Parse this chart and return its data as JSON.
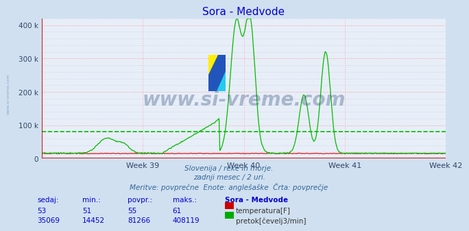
{
  "title": "Sora - Medvode",
  "title_color": "#0000cc",
  "bg_color": "#d0e0f0",
  "plot_bg_color": "#e8eef8",
  "grid_color_major": "#ffb0b0",
  "grid_color_minor": "#c8d8e8",
  "xlim": [
    0,
    336
  ],
  "ylim": [
    0,
    420000
  ],
  "yticks": [
    0,
    100000,
    200000,
    300000,
    400000
  ],
  "ytick_labels": [
    "0",
    "100 k",
    "200 k",
    "300 k",
    "400 k"
  ],
  "xtick_positions": [
    84,
    168,
    252,
    336
  ],
  "xtick_labels": [
    "Week 39",
    "Week 40",
    "Week 41",
    "Week 42"
  ],
  "vline_positions": [
    0,
    84,
    168,
    252,
    336
  ],
  "avg_line_value": 81266,
  "avg_line_color": "#00bb00",
  "temp_line_color": "#dd0000",
  "flow_line_color": "#00bb00",
  "axis_color": "#cc0000",
  "watermark_text": "www.si-vreme.com",
  "watermark_color": "#1a3a6a",
  "watermark_alpha": 0.3,
  "subtitle_lines": [
    "Slovenija / reke in morje.",
    "zadnji mesec / 2 uri.",
    "Meritve: povprečne  Enote: anglešaške  Črta: povprečje"
  ],
  "subtitle_color": "#336699",
  "table_header": [
    "sedaj:",
    "min.:",
    "povpr.:",
    "maks.:",
    "Sora - Medvode"
  ],
  "table_row1": [
    "53",
    "51",
    "55",
    "61"
  ],
  "table_row1_label": "temperatura[F]",
  "table_row1_color": "#cc0000",
  "table_row2": [
    "35069",
    "14452",
    "81266",
    "408119"
  ],
  "table_row2_label": "pretok[čevelj3/min]",
  "table_row2_color": "#00aa00",
  "ylabel_color": "#336699",
  "ylabel_alpha": 0.45,
  "logo_colors": [
    "#2255bb",
    "#ffee00",
    "#22bbdd"
  ]
}
